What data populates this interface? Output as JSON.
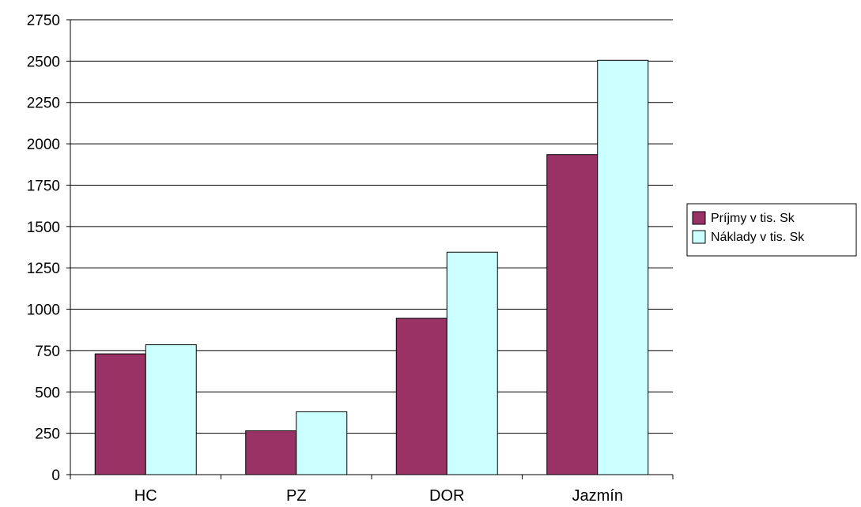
{
  "chart_data": {
    "type": "bar",
    "categories": [
      "HC",
      "PZ",
      "DOR",
      "Jazmín"
    ],
    "series": [
      {
        "name": "Príjmy v tis. Sk",
        "color": "#993366",
        "values": [
          730,
          265,
          945,
          1935
        ]
      },
      {
        "name": "Náklady v tis. Sk",
        "color": "#ccffff",
        "values": [
          785,
          380,
          1345,
          2505
        ]
      }
    ],
    "ylim": [
      0,
      2750
    ],
    "yticks": [
      0,
      250,
      500,
      750,
      1000,
      1250,
      1500,
      1750,
      2000,
      2250,
      2500,
      2750
    ],
    "grid": true,
    "legend_position": "right",
    "title": "",
    "xlabel": "",
    "ylabel": ""
  }
}
